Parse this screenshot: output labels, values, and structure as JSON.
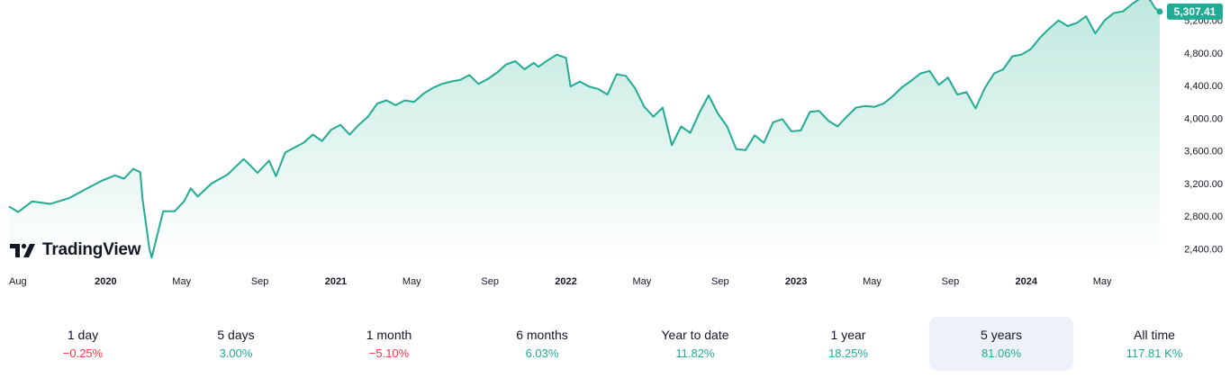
{
  "brand": {
    "name": "TradingView"
  },
  "colors": {
    "line": "#22ab94",
    "fill_top": "#bfe8de",
    "fill_bottom": "#ffffff",
    "negative": "#f23645",
    "positive": "#22ab94",
    "active_period_bg": "#eef1f9"
  },
  "chart_data": {
    "type": "area",
    "title": "",
    "xlabel": "",
    "ylabel": "",
    "last_value_label": "5,307.41",
    "ylim": [
      2250,
      5450
    ],
    "xlim": [
      2019.58,
      2024.58
    ],
    "grid": false,
    "y_ticks": [
      "2,400.00",
      "2,800.00",
      "3,200.00",
      "3,600.00",
      "4,000.00",
      "4,400.00",
      "4,800.00",
      "5,200.00"
    ],
    "y_tick_values": [
      2400,
      2800,
      3200,
      3600,
      4000,
      4400,
      4800,
      5200
    ],
    "x_ticks": [
      {
        "label": "Aug",
        "x": 2019.58,
        "year": false
      },
      {
        "label": "2020",
        "x": 2020.0,
        "year": true
      },
      {
        "label": "May",
        "x": 2020.33,
        "year": false
      },
      {
        "label": "Sep",
        "x": 2020.67,
        "year": false
      },
      {
        "label": "2021",
        "x": 2021.0,
        "year": true
      },
      {
        "label": "May",
        "x": 2021.33,
        "year": false
      },
      {
        "label": "Sep",
        "x": 2021.67,
        "year": false
      },
      {
        "label": "2022",
        "x": 2022.0,
        "year": true
      },
      {
        "label": "May",
        "x": 2022.33,
        "year": false
      },
      {
        "label": "Sep",
        "x": 2022.67,
        "year": false
      },
      {
        "label": "2023",
        "x": 2023.0,
        "year": true
      },
      {
        "label": "May",
        "x": 2023.33,
        "year": false
      },
      {
        "label": "Sep",
        "x": 2023.67,
        "year": false
      },
      {
        "label": "2024",
        "x": 2024.0,
        "year": true
      },
      {
        "label": "May",
        "x": 2024.33,
        "year": false
      }
    ],
    "series": [
      {
        "values": [
          [
            2019.58,
            2920
          ],
          [
            2019.62,
            2850
          ],
          [
            2019.68,
            2980
          ],
          [
            2019.76,
            2950
          ],
          [
            2019.84,
            3020
          ],
          [
            2019.92,
            3140
          ],
          [
            2019.98,
            3230
          ],
          [
            2020.04,
            3300
          ],
          [
            2020.08,
            3260
          ],
          [
            2020.12,
            3380
          ],
          [
            2020.15,
            3340
          ],
          [
            2020.16,
            3020
          ],
          [
            2020.19,
            2400
          ],
          [
            2020.2,
            2290
          ],
          [
            2020.22,
            2520
          ],
          [
            2020.25,
            2860
          ],
          [
            2020.3,
            2860
          ],
          [
            2020.34,
            2980
          ],
          [
            2020.37,
            3140
          ],
          [
            2020.4,
            3040
          ],
          [
            2020.46,
            3200
          ],
          [
            2020.53,
            3310
          ],
          [
            2020.6,
            3500
          ],
          [
            2020.66,
            3330
          ],
          [
            2020.71,
            3480
          ],
          [
            2020.74,
            3290
          ],
          [
            2020.78,
            3580
          ],
          [
            2020.82,
            3640
          ],
          [
            2020.86,
            3700
          ],
          [
            2020.9,
            3800
          ],
          [
            2020.94,
            3720
          ],
          [
            2020.98,
            3860
          ],
          [
            2021.02,
            3920
          ],
          [
            2021.06,
            3800
          ],
          [
            2021.1,
            3920
          ],
          [
            2021.14,
            4020
          ],
          [
            2021.18,
            4180
          ],
          [
            2021.22,
            4220
          ],
          [
            2021.26,
            4160
          ],
          [
            2021.3,
            4220
          ],
          [
            2021.34,
            4200
          ],
          [
            2021.38,
            4300
          ],
          [
            2021.42,
            4370
          ],
          [
            2021.46,
            4420
          ],
          [
            2021.5,
            4450
          ],
          [
            2021.54,
            4470
          ],
          [
            2021.58,
            4530
          ],
          [
            2021.62,
            4420
          ],
          [
            2021.66,
            4480
          ],
          [
            2021.7,
            4560
          ],
          [
            2021.74,
            4660
          ],
          [
            2021.78,
            4700
          ],
          [
            2021.82,
            4600
          ],
          [
            2021.86,
            4680
          ],
          [
            2021.88,
            4630
          ],
          [
            2021.92,
            4710
          ],
          [
            2021.96,
            4780
          ],
          [
            2022.0,
            4740
          ],
          [
            2022.02,
            4390
          ],
          [
            2022.06,
            4450
          ],
          [
            2022.1,
            4390
          ],
          [
            2022.14,
            4360
          ],
          [
            2022.18,
            4290
          ],
          [
            2022.22,
            4540
          ],
          [
            2022.26,
            4520
          ],
          [
            2022.3,
            4370
          ],
          [
            2022.34,
            4140
          ],
          [
            2022.38,
            4020
          ],
          [
            2022.42,
            4130
          ],
          [
            2022.46,
            3670
          ],
          [
            2022.5,
            3900
          ],
          [
            2022.54,
            3820
          ],
          [
            2022.58,
            4070
          ],
          [
            2022.62,
            4280
          ],
          [
            2022.66,
            4060
          ],
          [
            2022.7,
            3900
          ],
          [
            2022.74,
            3620
          ],
          [
            2022.78,
            3610
          ],
          [
            2022.82,
            3790
          ],
          [
            2022.86,
            3700
          ],
          [
            2022.9,
            3950
          ],
          [
            2022.94,
            3990
          ],
          [
            2022.98,
            3840
          ],
          [
            2023.02,
            3850
          ],
          [
            2023.06,
            4080
          ],
          [
            2023.1,
            4090
          ],
          [
            2023.14,
            3970
          ],
          [
            2023.18,
            3900
          ],
          [
            2023.22,
            4020
          ],
          [
            2023.26,
            4130
          ],
          [
            2023.3,
            4150
          ],
          [
            2023.34,
            4140
          ],
          [
            2023.38,
            4180
          ],
          [
            2023.42,
            4270
          ],
          [
            2023.46,
            4380
          ],
          [
            2023.5,
            4460
          ],
          [
            2023.54,
            4550
          ],
          [
            2023.58,
            4580
          ],
          [
            2023.62,
            4410
          ],
          [
            2023.66,
            4500
          ],
          [
            2023.7,
            4290
          ],
          [
            2023.74,
            4320
          ],
          [
            2023.78,
            4120
          ],
          [
            2023.82,
            4370
          ],
          [
            2023.86,
            4550
          ],
          [
            2023.9,
            4600
          ],
          [
            2023.94,
            4760
          ],
          [
            2023.98,
            4780
          ],
          [
            2024.02,
            4850
          ],
          [
            2024.06,
            4990
          ],
          [
            2024.1,
            5100
          ],
          [
            2024.14,
            5200
          ],
          [
            2024.18,
            5130
          ],
          [
            2024.22,
            5170
          ],
          [
            2024.26,
            5250
          ],
          [
            2024.3,
            5040
          ],
          [
            2024.34,
            5200
          ],
          [
            2024.38,
            5290
          ],
          [
            2024.42,
            5310
          ],
          [
            2024.46,
            5400
          ],
          [
            2024.49,
            5460
          ],
          [
            2024.52,
            5490
          ],
          [
            2024.54,
            5440
          ],
          [
            2024.56,
            5350
          ],
          [
            2024.58,
            5307.41
          ]
        ]
      }
    ]
  },
  "periods": [
    {
      "label": "1 day",
      "value": "−0.25%",
      "trend": "neg"
    },
    {
      "label": "5 days",
      "value": "3.00%",
      "trend": "pos"
    },
    {
      "label": "1 month",
      "value": "−5.10%",
      "trend": "neg"
    },
    {
      "label": "6 months",
      "value": "6.03%",
      "trend": "pos"
    },
    {
      "label": "Year to date",
      "value": "11.82%",
      "trend": "pos"
    },
    {
      "label": "1 year",
      "value": "18.25%",
      "trend": "pos"
    },
    {
      "label": "5 years",
      "value": "81.06%",
      "trend": "pos",
      "active": true
    },
    {
      "label": "All time",
      "value": "117.81 K%",
      "trend": "pos"
    }
  ]
}
